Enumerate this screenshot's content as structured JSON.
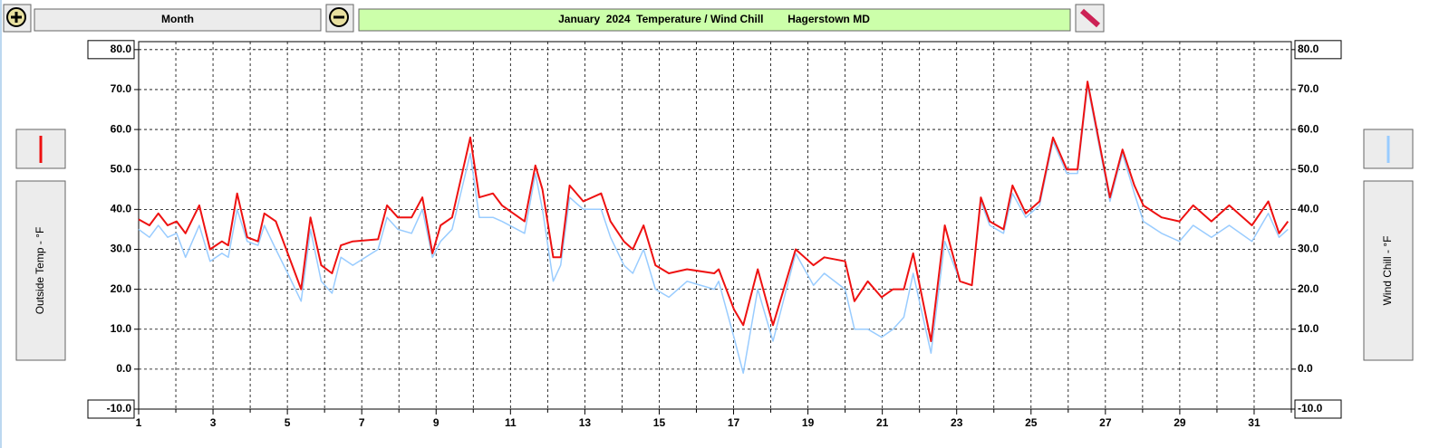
{
  "ui": {
    "range_button": "Month"
  },
  "chart_data": {
    "type": "line",
    "title": "January  2024  Temperature / Wind Chill        Hagerstown MD",
    "ylabel": "Outside Temp - °F",
    "y2label": "Wind Chill - °F",
    "xlim": [
      1,
      32
    ],
    "xticks": [
      1,
      3,
      5,
      7,
      9,
      11,
      13,
      15,
      17,
      19,
      21,
      23,
      25,
      27,
      29,
      31
    ],
    "xminorticks": [
      2,
      4,
      6,
      8,
      10,
      12,
      14,
      16,
      18,
      20,
      22,
      24,
      26,
      28,
      30,
      32
    ],
    "ylim": [
      -10,
      82
    ],
    "yticks": [
      {
        "value": -10,
        "label": "-10.0"
      },
      {
        "value": 0,
        "label": "0.0"
      },
      {
        "value": 10,
        "label": "10.0"
      },
      {
        "value": 20,
        "label": "20.0"
      },
      {
        "value": 30,
        "label": "30.0"
      },
      {
        "value": 40,
        "label": "40.0"
      },
      {
        "value": 50,
        "label": "50.0"
      },
      {
        "value": 60,
        "label": "60.0"
      },
      {
        "value": 70,
        "label": "70.0"
      },
      {
        "value": 80,
        "label": "80.0"
      }
    ],
    "grid": true,
    "x": [
      1.0,
      1.29,
      1.53,
      1.78,
      2.02,
      2.26,
      2.63,
      2.92,
      3.24,
      3.41,
      3.65,
      3.92,
      4.21,
      4.38,
      4.69,
      5.01,
      5.37,
      5.62,
      5.91,
      6.2,
      6.44,
      6.76,
      7.44,
      7.68,
      7.97,
      8.34,
      8.63,
      8.9,
      9.12,
      9.43,
      9.92,
      10.16,
      10.53,
      10.77,
      11.38,
      11.67,
      11.86,
      12.15,
      12.35,
      12.59,
      12.96,
      13.44,
      13.69,
      14.05,
      14.29,
      14.58,
      14.9,
      15.26,
      15.75,
      16.48,
      16.6,
      17.01,
      17.26,
      17.65,
      18.06,
      18.67,
      19.15,
      19.44,
      20.0,
      20.25,
      20.61,
      20.98,
      21.29,
      21.58,
      21.83,
      22.31,
      22.68,
      23.09,
      23.41,
      23.65,
      23.89,
      24.26,
      24.5,
      24.86,
      25.23,
      25.59,
      25.96,
      26.25,
      26.52,
      26.81,
      27.12,
      27.46,
      27.78,
      28.02,
      28.51,
      28.99,
      29.36,
      29.85,
      30.33,
      30.94,
      31.38,
      31.67,
      31.91
    ],
    "series": [
      {
        "name": "Wind Chill",
        "color": "#99ccff",
        "values": [
          35,
          33,
          36,
          33,
          34,
          28,
          36,
          27,
          29,
          28,
          40,
          32,
          31,
          36,
          30,
          24,
          17,
          35,
          22,
          19,
          28,
          26,
          30,
          38,
          35,
          34,
          40,
          28,
          32,
          35,
          54,
          38,
          38,
          37,
          34,
          49,
          40,
          22,
          26,
          43,
          40,
          40,
          33,
          26,
          24,
          30,
          20,
          18,
          22,
          20,
          22,
          8,
          -1,
          20,
          7,
          29,
          21,
          24,
          20,
          10,
          10,
          8,
          10,
          13,
          24,
          4,
          32,
          22,
          21,
          42,
          36,
          34,
          44,
          38,
          41,
          57,
          49,
          49,
          71,
          57,
          42,
          54,
          44,
          37,
          34,
          32,
          36,
          33,
          36,
          32,
          39,
          33,
          35
        ]
      },
      {
        "name": "Outside Temp",
        "color": "#ee1111",
        "values": [
          37.5,
          36,
          39,
          36,
          37,
          34,
          41,
          30,
          32,
          31,
          44,
          33,
          32,
          39,
          37,
          29,
          20,
          38,
          26,
          24,
          31,
          32,
          32.5,
          41,
          38,
          38,
          43,
          29,
          36,
          38,
          58,
          43,
          44,
          41,
          37,
          51,
          45,
          28,
          28,
          46,
          42,
          44,
          37,
          32,
          30,
          36,
          26,
          24,
          25,
          24,
          25,
          15,
          11,
          25,
          11,
          30,
          26,
          28,
          27,
          17,
          22,
          18,
          20,
          20,
          29,
          7,
          36,
          22,
          21,
          43,
          37,
          35,
          46,
          39,
          42,
          58,
          50,
          50,
          72,
          58,
          43,
          55,
          46,
          41,
          38,
          37,
          41,
          37,
          41,
          36,
          42,
          34,
          37
        ]
      }
    ]
  }
}
